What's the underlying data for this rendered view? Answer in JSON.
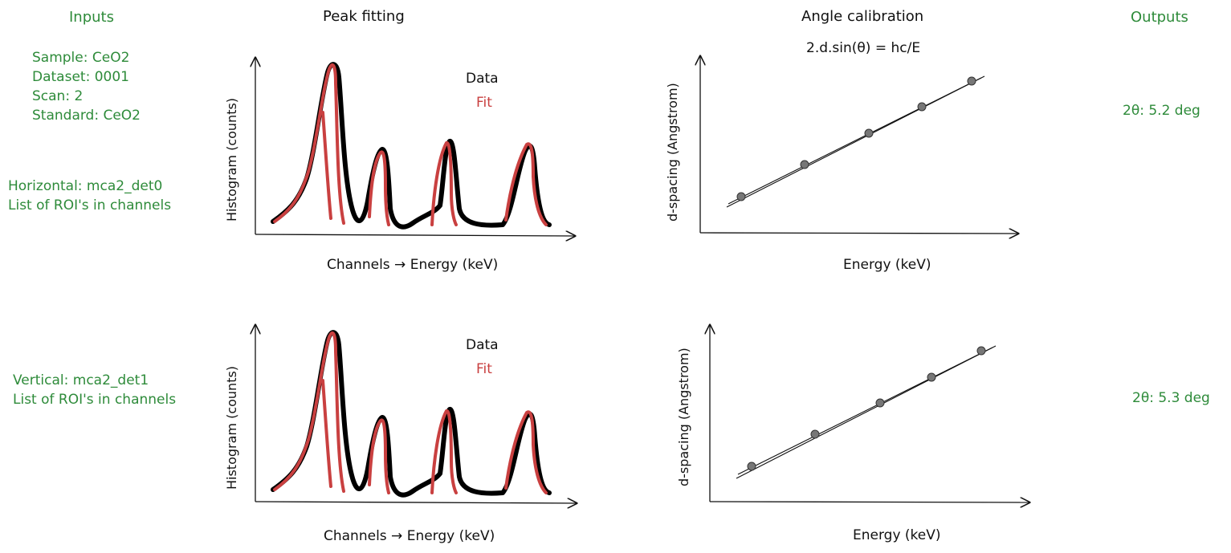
{
  "headers": {
    "inputs": "Inputs",
    "peak_fitting": "Peak fitting",
    "angle_calibration": "Angle calibration",
    "outputs": "Outputs"
  },
  "inputs": {
    "sample": "Sample: CeO2",
    "dataset": "Dataset: 0001",
    "scan": "Scan: 2",
    "standard": "Standard: CeO2",
    "horizontal_detector": "Horizontal: mca2_det0",
    "horizontal_roi": "List of ROI's in channels",
    "vertical_detector": "Vertical: mca2_det1",
    "vertical_roi": "List of ROI's in channels"
  },
  "equation": "2.d.sin(θ) = hc/E",
  "peak_plots": [
    {
      "ylabel": "Histogram (counts)",
      "xlabel": "Channels → Energy (keV)",
      "legend": {
        "data": "Data",
        "fit": "Fit"
      }
    },
    {
      "ylabel": "Histogram (counts)",
      "xlabel": "Channels → Energy (keV)",
      "legend": {
        "data": "Data",
        "fit": "Fit"
      }
    }
  ],
  "calibration_plots": [
    {
      "ylabel": "d-spacing (Angstrom)",
      "xlabel": "Energy (keV)"
    },
    {
      "ylabel": "d-spacing (Angstrom)",
      "xlabel": "Energy (keV)"
    }
  ],
  "outputs": {
    "horizontal": "2θ: 5.2 deg",
    "vertical": "2θ: 5.3 deg"
  },
  "colors": {
    "input_text": "#2e8b3a",
    "data_curve": "#000000",
    "fit_curve": "#c94040",
    "calibration_point": "#666666"
  }
}
